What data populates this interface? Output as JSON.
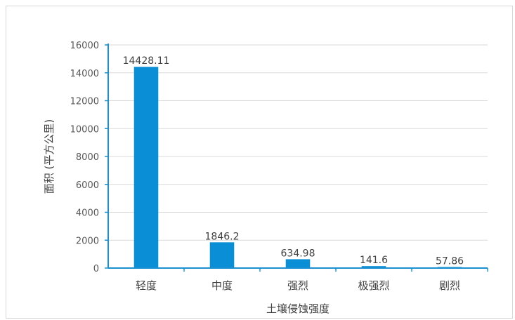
{
  "chart_data": {
    "type": "bar",
    "title": "",
    "xlabel": "土壤侵蚀强度",
    "ylabel": "面积 (平方公里)",
    "categories": [
      "轻度",
      "中度",
      "强烈",
      "极强烈",
      "剧烈"
    ],
    "values": [
      14428.11,
      1846.2,
      634.98,
      141.6,
      57.86
    ],
    "data_labels": [
      "14428.11",
      "1846.2",
      "634.98",
      "141.6",
      "57.86"
    ],
    "ylim": [
      0,
      16000
    ],
    "yticks": [
      0,
      2000,
      4000,
      6000,
      8000,
      10000,
      12000,
      14000,
      16000
    ],
    "grid": true,
    "legend": "none",
    "colors": {
      "bar": "#0a8fd6",
      "axis": "#1b8fd0",
      "grid": "#d9d9d9"
    }
  }
}
